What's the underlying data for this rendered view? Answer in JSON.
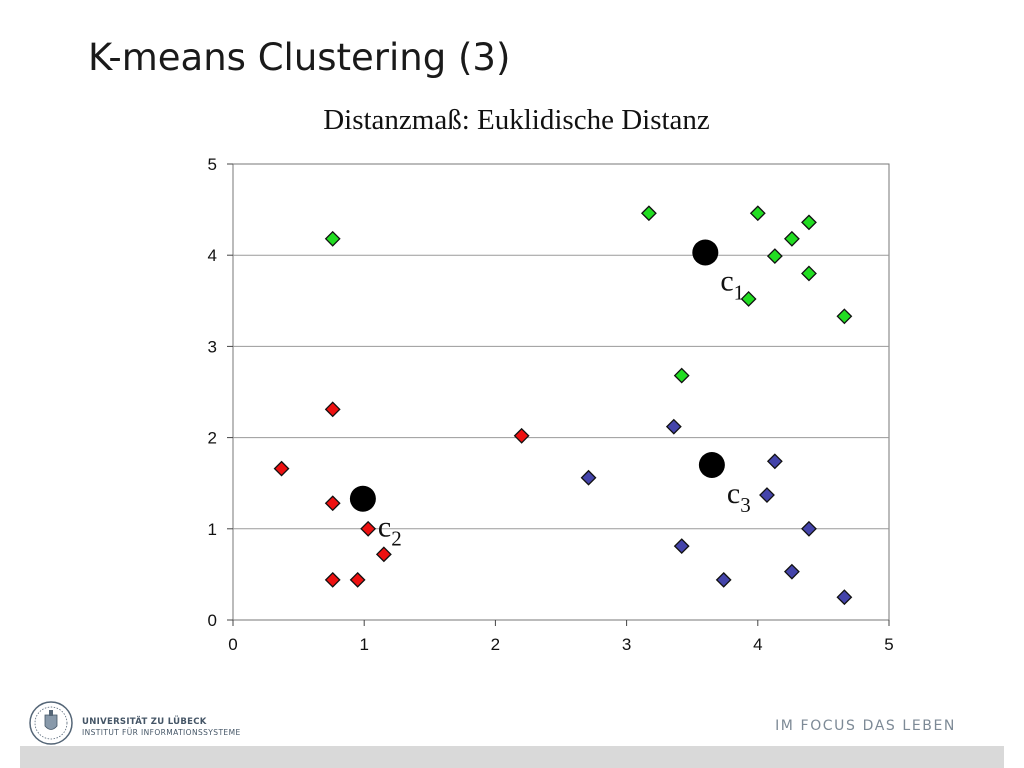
{
  "slide": {
    "title": "K-means Clustering (3)",
    "subtitle": "Distanzmaß: Euklidische Distanz"
  },
  "footer": {
    "university": "UNIVERSITÄT ZU LÜBECK",
    "institute": "INSTITUT FÜR INFORMATIONSSYSTEME",
    "motto": "IM FOCUS DAS LEBEN"
  },
  "chart_data": {
    "type": "scatter",
    "title": "Distanzmaß: Euklidische Distanz",
    "xlabel": "",
    "ylabel": "",
    "xlim": [
      0,
      5
    ],
    "ylim": [
      0,
      5
    ],
    "xticks": [
      "0",
      "1",
      "2",
      "3",
      "4",
      "5"
    ],
    "yticks": [
      "0",
      "1",
      "2",
      "3",
      "4",
      "5"
    ],
    "grid": "horizontal",
    "series": [
      {
        "color": "#22dd22",
        "marker": "diamond",
        "points": [
          [
            0.76,
            4.18
          ],
          [
            3.17,
            4.46
          ],
          [
            4.0,
            4.46
          ],
          [
            4.39,
            4.36
          ],
          [
            4.26,
            4.18
          ],
          [
            4.13,
            3.99
          ],
          [
            4.39,
            3.8
          ],
          [
            3.93,
            3.52
          ],
          [
            4.66,
            3.33
          ],
          [
            3.42,
            2.68
          ]
        ]
      },
      {
        "color": "#ee1111",
        "marker": "diamond",
        "points": [
          [
            0.76,
            2.31
          ],
          [
            2.2,
            2.02
          ],
          [
            0.37,
            1.66
          ],
          [
            0.76,
            1.28
          ],
          [
            1.03,
            1.0
          ],
          [
            1.15,
            0.72
          ],
          [
            0.76,
            0.44
          ],
          [
            0.95,
            0.44
          ]
        ]
      },
      {
        "color": "#4444aa",
        "marker": "diamond",
        "points": [
          [
            3.36,
            2.12
          ],
          [
            4.13,
            1.74
          ],
          [
            2.71,
            1.56
          ],
          [
            4.07,
            1.37
          ],
          [
            4.39,
            1.0
          ],
          [
            3.42,
            0.81
          ],
          [
            3.74,
            0.44
          ],
          [
            4.26,
            0.53
          ],
          [
            4.66,
            0.25
          ]
        ]
      }
    ],
    "centroids": [
      {
        "label": "c1",
        "base": "c",
        "sub": "1",
        "x": 3.6,
        "y": 4.03
      },
      {
        "label": "c2",
        "base": "c",
        "sub": "2",
        "x": 0.99,
        "y": 1.33
      },
      {
        "label": "c3",
        "base": "c",
        "sub": "3",
        "x": 3.65,
        "y": 1.7
      }
    ]
  }
}
